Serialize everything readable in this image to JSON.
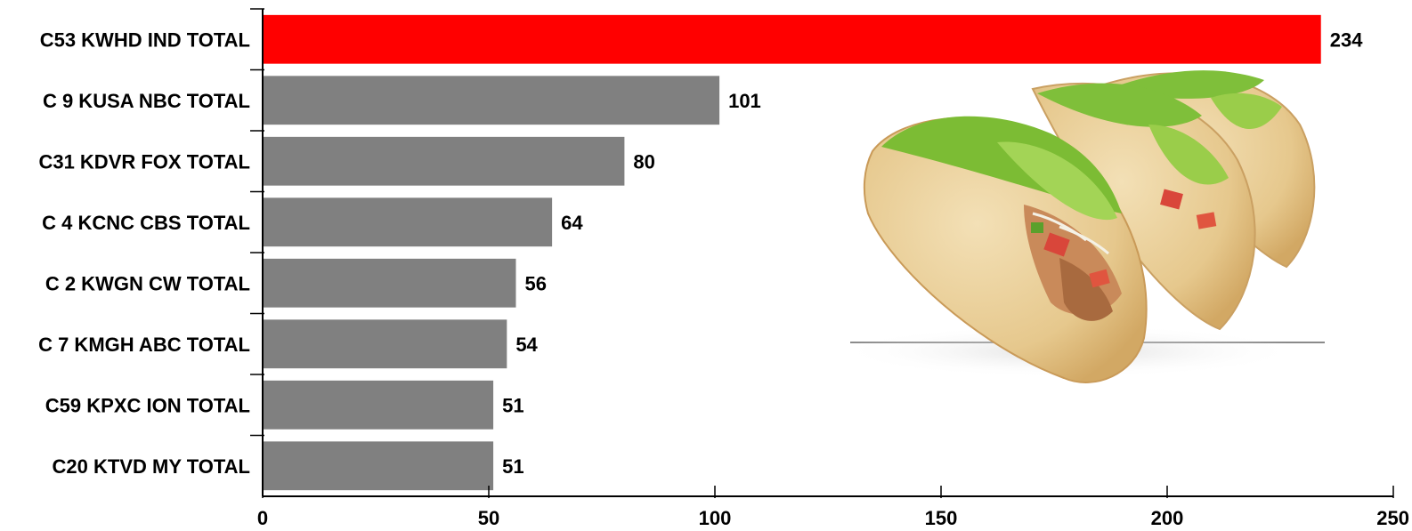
{
  "chart_data": {
    "type": "bar",
    "orientation": "horizontal",
    "categories": [
      "C53 KWHD IND TOTAL",
      "C 9 KUSA NBC TOTAL",
      "C31 KDVR FOX TOTAL",
      "C 4 KCNC CBS TOTAL",
      "C 2 KWGN CW TOTAL",
      "C 7 KMGH ABC TOTAL",
      "C59 KPXC ION TOTAL",
      "C20 KTVD MY TOTAL"
    ],
    "values": [
      234,
      101,
      80,
      64,
      56,
      54,
      51,
      51
    ],
    "value_labels": [
      "234",
      "101",
      "80",
      "64",
      "56",
      "54",
      "51",
      "51"
    ],
    "highlight_index": 0,
    "colors": {
      "highlight": "#ff0000",
      "default": "#808080"
    },
    "xlim": [
      0,
      250
    ],
    "xticks": [
      0,
      50,
      100,
      150,
      200,
      250
    ],
    "xtick_labels": [
      "0",
      "50",
      "100",
      "150",
      "200",
      "250"
    ],
    "title": "",
    "xlabel": "",
    "ylabel": "",
    "grid": false,
    "legend": "none"
  },
  "decoration": {
    "image_icon": "tacos-illustration-icon"
  }
}
